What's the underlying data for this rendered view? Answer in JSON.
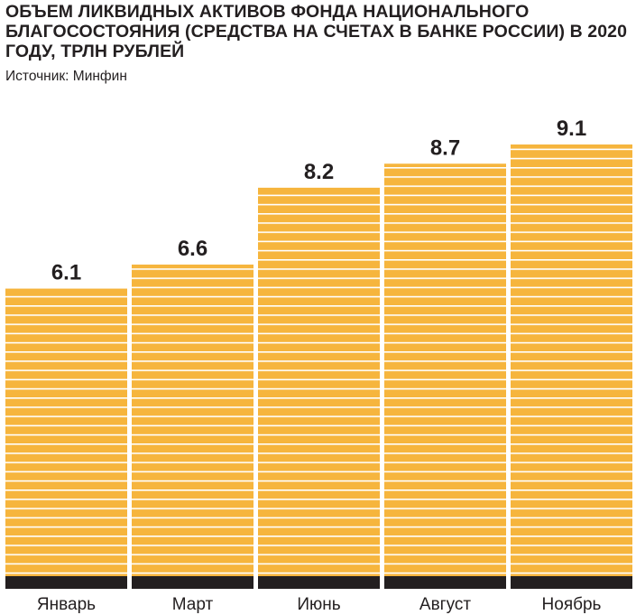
{
  "title": "ОБЪЕМ ЛИКВИДНЫХ АКТИВОВ ФОНДА НАЦИОНАЛЬНОГО БЛАГОСОСТОЯНИЯ (СРЕДСТВА НА СЧЕТАХ В БАНКЕ РОССИИ) В 2020 ГОДУ, ТРЛН РУБЛЕЙ",
  "source": "Источник: Минфин",
  "colors": {
    "bar": "#f6b53d",
    "stripe": "#ffffff",
    "baseline": "#231f20",
    "text": "#231f20"
  },
  "chart_data": {
    "type": "bar",
    "title": "ОБЪЕМ ЛИКВИДНЫХ АКТИВОВ ФОНДА НАЦИОНАЛЬНОГО БЛАГОСОСТОЯНИЯ (СРЕДСТВА НА СЧЕТАХ В БАНКЕ РОССИИ) В 2020 ГОДУ, ТРЛН РУБЛЕЙ",
    "categories": [
      "Январь",
      "Март",
      "Июнь",
      "Август",
      "Ноябрь"
    ],
    "values": [
      6.1,
      6.6,
      8.2,
      8.7,
      9.1
    ],
    "value_labels": [
      "6.1",
      "6.6",
      "8.2",
      "8.7",
      "9.1"
    ],
    "xlabel": "",
    "ylabel": "",
    "ylim": [
      0,
      9.1
    ],
    "grid": false,
    "legend": "none"
  }
}
